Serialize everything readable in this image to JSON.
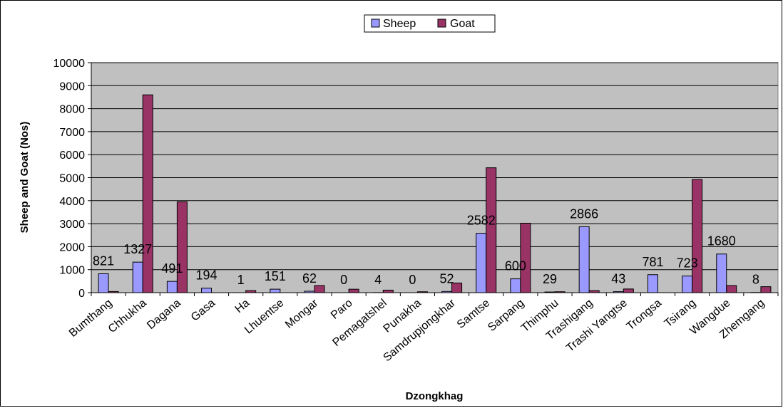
{
  "chart_data": {
    "type": "bar",
    "title": "",
    "xlabel": "Dzongkhag",
    "ylabel": "Sheep and Goat (Nos)",
    "ylim": [
      0,
      10000
    ],
    "yticks": [
      0,
      1000,
      2000,
      3000,
      4000,
      5000,
      6000,
      7000,
      8000,
      9000,
      10000
    ],
    "grid": true,
    "legend_position": "top-center",
    "categories": [
      "Bumthang",
      "Chhukha",
      "Dagana",
      "Gasa",
      "Ha",
      "Lhuentse",
      "Mongar",
      "Paro",
      "Pemagatshel",
      "Punakha",
      "Samdrupjongkhar",
      "Samtse",
      "Sarpang",
      "Thimphu",
      "Trashigang",
      "Trashi Yangtse",
      "Trongsa",
      "Tsirang",
      "Wangdue",
      "Zhemgang"
    ],
    "series": [
      {
        "name": "Sheep",
        "color": "#9999FF",
        "values": [
          821,
          1327,
          491,
          194,
          1,
          151,
          62,
          0,
          4,
          0,
          52,
          2582,
          600,
          29,
          2866,
          43,
          781,
          723,
          1680,
          8
        ],
        "labels": [
          "821",
          "1327",
          "491",
          "194",
          "1",
          "151",
          "62",
          "0",
          "4",
          "0",
          "52",
          "2582",
          "600",
          "29",
          "2866",
          "43",
          "781",
          "723",
          "1680",
          "8"
        ]
      },
      {
        "name": "Goat",
        "color": "#993366",
        "values": [
          50,
          8600,
          3950,
          0,
          90,
          0,
          310,
          150,
          110,
          40,
          420,
          5430,
          3020,
          40,
          90,
          160,
          0,
          4920,
          310,
          260
        ]
      }
    ]
  }
}
